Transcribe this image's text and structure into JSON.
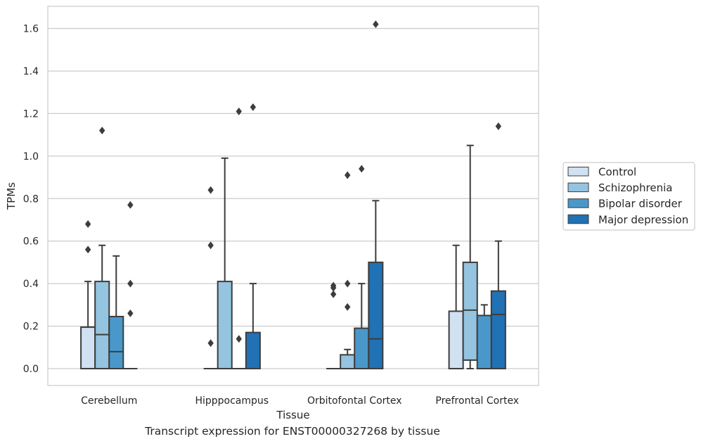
{
  "caption": "Transcript expression for ENST00000327268 by tissue",
  "chart_data": {
    "type": "box",
    "xlabel": "Tissue",
    "ylabel": "TPMs",
    "ylim": [
      -0.08,
      1.71
    ],
    "yticks": [
      0.0,
      0.2,
      0.4,
      0.6,
      0.8,
      1.0,
      1.2,
      1.4,
      1.6
    ],
    "ytick_labels": [
      "0.0",
      "0.2",
      "0.4",
      "0.6",
      "0.8",
      "1.0",
      "1.2",
      "1.4",
      "1.6"
    ],
    "grid": "horizontal",
    "legend_placement": "right",
    "categories": [
      "Cerebellum",
      "Hipppocampus",
      "Orbitofontal Cortex",
      "Prefrontal Cortex"
    ],
    "series": [
      {
        "name": "Control",
        "color": "#d0e1f2",
        "boxes": [
          {
            "q1": 0.0,
            "median": 0.0,
            "q3": 0.195,
            "whisker_low": 0.0,
            "whisker_high": 0.41,
            "outliers": [
              0.56,
              0.68
            ]
          },
          {
            "q1": 0.0,
            "median": 0.0,
            "q3": 0.0,
            "whisker_low": 0.0,
            "whisker_high": 0.0,
            "outliers": [
              0.12,
              0.58,
              0.84
            ]
          },
          {
            "q1": 0.0,
            "median": 0.0,
            "q3": 0.0,
            "whisker_low": 0.0,
            "whisker_high": 0.0,
            "outliers": [
              0.35,
              0.38,
              0.39
            ]
          },
          {
            "q1": 0.0,
            "median": 0.0,
            "q3": 0.27,
            "whisker_low": 0.0,
            "whisker_high": 0.58,
            "outliers": []
          }
        ]
      },
      {
        "name": "Schizophrenia",
        "color": "#94c4df",
        "boxes": [
          {
            "q1": 0.0,
            "median": 0.16,
            "q3": 0.41,
            "whisker_low": 0.0,
            "whisker_high": 0.58,
            "outliers": [
              1.12
            ]
          },
          {
            "q1": 0.0,
            "median": 0.0,
            "q3": 0.41,
            "whisker_low": 0.0,
            "whisker_high": 0.99,
            "outliers": []
          },
          {
            "q1": 0.0,
            "median": 0.0,
            "q3": 0.065,
            "whisker_low": 0.0,
            "whisker_high": 0.09,
            "outliers": [
              0.29,
              0.4,
              0.91
            ]
          },
          {
            "q1": 0.04,
            "median": 0.275,
            "q3": 0.5,
            "whisker_low": 0.0,
            "whisker_high": 1.05,
            "outliers": []
          }
        ]
      },
      {
        "name": "Bipolar disorder",
        "color": "#4a98c9",
        "boxes": [
          {
            "q1": 0.0,
            "median": 0.08,
            "q3": 0.245,
            "whisker_low": 0.0,
            "whisker_high": 0.53,
            "outliers": []
          },
          {
            "q1": 0.0,
            "median": 0.0,
            "q3": 0.0,
            "whisker_low": 0.0,
            "whisker_high": 0.0,
            "outliers": [
              0.14,
              1.21
            ]
          },
          {
            "q1": 0.0,
            "median": 0.0,
            "q3": 0.19,
            "whisker_low": 0.0,
            "whisker_high": 0.4,
            "outliers": [
              0.94
            ]
          },
          {
            "q1": 0.0,
            "median": 0.25,
            "q3": 0.25,
            "whisker_low": 0.0,
            "whisker_high": 0.3,
            "outliers": []
          }
        ]
      },
      {
        "name": "Major depression",
        "color": "#2171b5",
        "boxes": [
          {
            "q1": 0.0,
            "median": 0.0,
            "q3": 0.0,
            "whisker_low": 0.0,
            "whisker_high": 0.0,
            "outliers": [
              0.26,
              0.4,
              0.77
            ]
          },
          {
            "q1": 0.0,
            "median": 0.0,
            "q3": 0.17,
            "whisker_low": 0.0,
            "whisker_high": 0.4,
            "outliers": [
              1.23
            ]
          },
          {
            "q1": 0.0,
            "median": 0.14,
            "q3": 0.5,
            "whisker_low": 0.0,
            "whisker_high": 0.79,
            "outliers": [
              1.62
            ]
          },
          {
            "q1": 0.0,
            "median": 0.255,
            "q3": 0.365,
            "whisker_low": 0.0,
            "whisker_high": 0.6,
            "outliers": [
              1.14
            ]
          }
        ]
      }
    ]
  }
}
